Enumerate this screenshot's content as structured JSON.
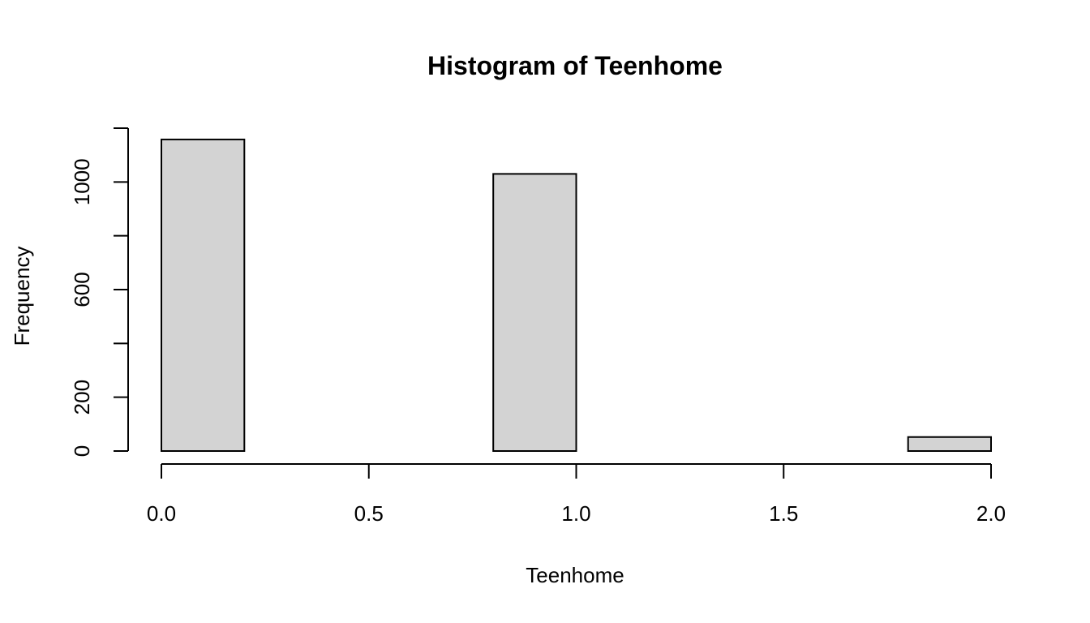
{
  "chart_data": {
    "type": "bar",
    "title": "Histogram of Teenhome",
    "xlabel": "Teenhome",
    "ylabel": "Frequency",
    "bins": [
      {
        "x0": 0.0,
        "x1": 0.2,
        "count": 1158
      },
      {
        "x0": 0.2,
        "x1": 0.4,
        "count": 0
      },
      {
        "x0": 0.4,
        "x1": 0.6,
        "count": 0
      },
      {
        "x0": 0.6,
        "x1": 0.8,
        "count": 0
      },
      {
        "x0": 0.8,
        "x1": 1.0,
        "count": 1030
      },
      {
        "x0": 1.0,
        "x1": 1.2,
        "count": 0
      },
      {
        "x0": 1.2,
        "x1": 1.4,
        "count": 0
      },
      {
        "x0": 1.4,
        "x1": 1.6,
        "count": 0
      },
      {
        "x0": 1.6,
        "x1": 1.8,
        "count": 0
      },
      {
        "x0": 1.8,
        "x1": 2.0,
        "count": 52
      }
    ],
    "xlim": [
      0,
      2
    ],
    "ylim": [
      0,
      1200
    ],
    "xticks": [
      0.0,
      0.5,
      1.0,
      1.5,
      2.0
    ],
    "xtick_labels": [
      "0.0",
      "0.5",
      "1.0",
      "1.5",
      "2.0"
    ],
    "yticks": [
      0,
      200,
      400,
      600,
      800,
      1000,
      1200
    ],
    "ytick_labels": [
      {
        "value": 0,
        "label": "0"
      },
      {
        "value": 200,
        "label": "200"
      },
      {
        "value": 600,
        "label": "600"
      },
      {
        "value": 1000,
        "label": "1000"
      }
    ],
    "bar_fill": "#d3d3d3",
    "bar_stroke": "#000000",
    "grid": false,
    "legend": "none"
  }
}
